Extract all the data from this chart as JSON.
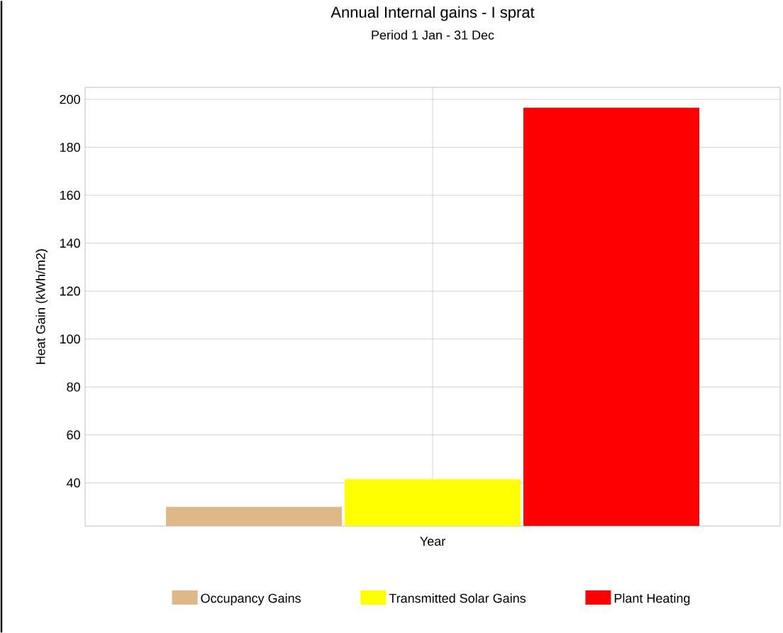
{
  "chart_data": {
    "type": "bar",
    "title": "Annual Internal gains - I sprat",
    "subtitle": "Period 1 Jan - 31 Dec",
    "xlabel": "Year",
    "ylabel": "Heat Gain (kWh/m2)",
    "categories": [
      "Year"
    ],
    "series": [
      {
        "name": "Occupancy Gains",
        "color": "#deb887",
        "values": [
          30
        ]
      },
      {
        "name": "Transmitted Solar Gains",
        "color": "#ffff00",
        "values": [
          41.5
        ]
      },
      {
        "name": "Plant Heating",
        "color": "#ff0000",
        "values": [
          196.5
        ]
      }
    ],
    "ylim": [
      22,
      205
    ],
    "yticks": [
      40,
      60,
      80,
      100,
      120,
      140,
      160,
      180,
      200
    ],
    "grid": true,
    "legend": "bottom"
  }
}
